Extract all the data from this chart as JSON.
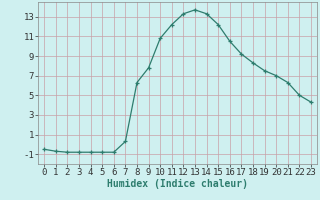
{
  "x": [
    0,
    1,
    2,
    3,
    4,
    5,
    6,
    7,
    8,
    9,
    10,
    11,
    12,
    13,
    14,
    15,
    16,
    17,
    18,
    19,
    20,
    21,
    22,
    23
  ],
  "y": [
    -0.5,
    -0.7,
    -0.8,
    -0.8,
    -0.8,
    -0.8,
    -0.8,
    0.3,
    6.3,
    7.8,
    10.8,
    12.2,
    13.3,
    13.7,
    13.3,
    12.2,
    10.5,
    9.2,
    8.3,
    7.5,
    7.0,
    6.3,
    5.0,
    4.3
  ],
  "xlabel": "Humidex (Indice chaleur)",
  "xlim": [
    -0.5,
    23.5
  ],
  "ylim": [
    -2.0,
    14.5
  ],
  "yticks": [
    -1,
    1,
    3,
    5,
    7,
    9,
    11,
    13
  ],
  "xticks": [
    0,
    1,
    2,
    3,
    4,
    5,
    6,
    7,
    8,
    9,
    10,
    11,
    12,
    13,
    14,
    15,
    16,
    17,
    18,
    19,
    20,
    21,
    22,
    23
  ],
  "line_color": "#2e7d6e",
  "marker": "+",
  "bg_color": "#cff0f0",
  "grid_color": "#c8a0a8",
  "label_fontsize": 7,
  "tick_fontsize": 6.5
}
